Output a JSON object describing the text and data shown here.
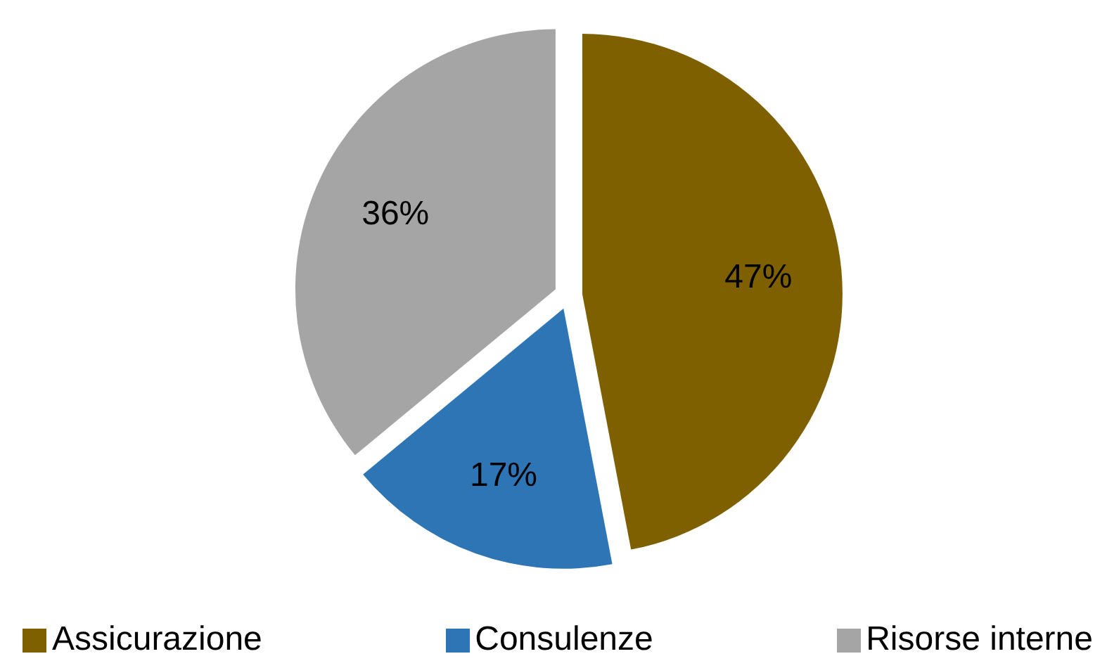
{
  "chart_data": {
    "type": "pie",
    "categories": [
      "Assicurazione",
      "Consulenze",
      "Risorse interne"
    ],
    "values": [
      47,
      17,
      36
    ],
    "colors": [
      "#7f6000",
      "#2e75b6",
      "#a5a5a5"
    ],
    "value_labels": [
      "47%",
      "17%",
      "36%"
    ],
    "legend": "bottom"
  }
}
